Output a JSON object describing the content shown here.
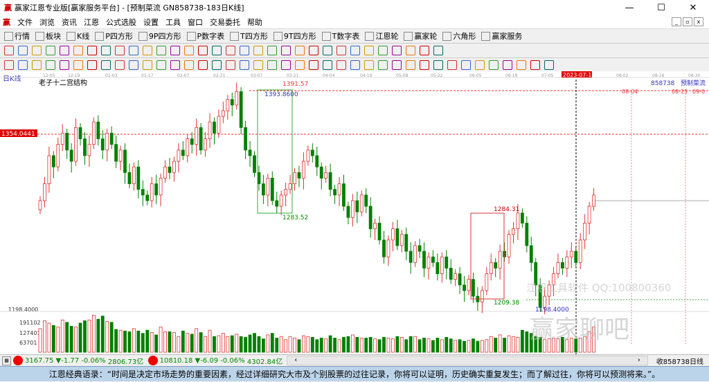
{
  "window": {
    "title": "赢家江恩专业版[赢家服务平台] - [预制菜流  GN858738-183日K线]",
    "logo": "赢",
    "controls": [
      "—",
      "☐",
      "✕"
    ]
  },
  "menu": [
    "文件",
    "浏览",
    "资讯",
    "江恩",
    "公式选股",
    "设置",
    "工具",
    "窗口",
    "交易委托",
    "帮助"
  ],
  "toolbar1": [
    "行情",
    "板块",
    "K线",
    "P四方形",
    "9P四方形",
    "P数字表",
    "T四方形",
    "9T四方形",
    "T数字表",
    "江恩轮",
    "赢家轮",
    "六角形",
    "赢家服务"
  ],
  "toolbar1_icons": [
    "grid-icon",
    "blocks-icon",
    "kline-icon",
    "ps-icon",
    "p9-icon",
    "pn-icon",
    "ts-icon",
    "t9-icon",
    "tn-icon",
    "wheel-icon",
    "winner-wheel-icon",
    "hexagon-icon",
    "dollar-icon"
  ],
  "chart": {
    "period_label": "日K线",
    "indicator_label": "老子十二宫结构",
    "symbol": "858738",
    "name": "预制菜流",
    "price_tag": "1354.0441",
    "low_axis": "1198.4000",
    "date_ticks": [
      "12-05",
      "12-19",
      "01-03",
      "01-17",
      "02-07",
      "02-21",
      "03-07",
      "03-21",
      "04-04",
      "04-19",
      "05-08",
      "05-22",
      "06-05",
      "06-19",
      "07-05",
      "2023-07-14",
      "08-02",
      "08-16",
      "08-30"
    ],
    "future_labels": [
      "08-04",
      "08-25",
      "09-0"
    ],
    "annotations": {
      "high": "1391.57",
      "box_high": "1393.8600",
      "box_low": "1283.52",
      "box2_high": "1284.31",
      "box2_low": "1209.38",
      "low": "1198.4000"
    },
    "volume_ticks": [
      "191102",
      "127401",
      "63701"
    ],
    "colors": {
      "up": "#e03030",
      "down": "#008000",
      "axis_highlight": "#e00000",
      "label_blue": "#3030c0"
    },
    "closes": [
      1295,
      1310,
      1335,
      1325,
      1345,
      1355,
      1340,
      1330,
      1360,
      1350,
      1335,
      1345,
      1365,
      1350,
      1340,
      1355,
      1345,
      1330,
      1340,
      1320,
      1310,
      1325,
      1305,
      1300,
      1295,
      1310,
      1300,
      1315,
      1325,
      1320,
      1330,
      1340,
      1335,
      1350,
      1345,
      1360,
      1340,
      1350,
      1365,
      1355,
      1370,
      1375,
      1385,
      1380,
      1392,
      1360,
      1340,
      1335,
      1320,
      1310,
      1300,
      1315,
      1295,
      1290,
      1300,
      1305,
      1310,
      1320,
      1315,
      1330,
      1340,
      1335,
      1325,
      1315,
      1320,
      1305,
      1300,
      1310,
      1290,
      1280,
      1295,
      1285,
      1300,
      1290,
      1270,
      1275,
      1260,
      1245,
      1260,
      1270,
      1255,
      1265,
      1250,
      1240,
      1255,
      1250,
      1235,
      1245,
      1240,
      1230,
      1245,
      1235,
      1225,
      1230,
      1220,
      1215,
      1225,
      1210,
      1205,
      1215,
      1230,
      1240,
      1235,
      1250,
      1245,
      1265,
      1270,
      1284,
      1275,
      1255,
      1240,
      1220,
      1200,
      1210,
      1220,
      1230,
      1240,
      1235,
      1245,
      1250,
      1240,
      1260,
      1275,
      1290,
      1300
    ],
    "volumes": [
      150000,
      200000,
      185000,
      170000,
      160000,
      205000,
      190000,
      165000,
      160000,
      185000,
      200000,
      205000,
      235000,
      210000,
      230000,
      195000,
      190000,
      145000,
      140000,
      135000,
      130000,
      150000,
      135000,
      120000,
      140000,
      125000,
      110000,
      160000,
      130000,
      130000,
      125000,
      100000,
      135000,
      120000,
      115000,
      150000,
      125000,
      100000,
      140000,
      100000,
      105000,
      120000,
      100000,
      105000,
      115000,
      100000,
      95000,
      110000,
      120000,
      100000,
      85000,
      110000,
      120000,
      90000,
      100000,
      80000,
      100000,
      90000,
      80000,
      105000,
      100000,
      95000,
      80000,
      90000,
      85000,
      105000,
      90000,
      80000,
      95000,
      100000,
      110000,
      95000,
      90000,
      90000,
      95000,
      85000,
      80000,
      95000,
      90000,
      85000,
      100000,
      95000,
      80000,
      100000,
      100000,
      80000,
      90000,
      85000,
      75000,
      90000,
      80000,
      95000,
      85000,
      75000,
      80000,
      70000,
      75000,
      85000,
      70000,
      75000,
      80000,
      100000,
      90000,
      110000,
      90000,
      105000,
      100000,
      95000,
      140000,
      130000,
      120000,
      100000,
      95000,
      80000,
      85000,
      90000,
      85000,
      95000,
      80000,
      90000,
      85000,
      90000,
      100000,
      130000,
      160000
    ]
  },
  "status": {
    "sh_index": "3167.75",
    "sh_change": "▼-1.77",
    "sh_pct": "-0.06%",
    "sh_amount": "2806.73亿",
    "sz_index": "10810.18",
    "sz_change": "▼-6.09",
    "sz_pct": "-0.06%",
    "sz_amount": "4302.84亿",
    "right": "收858738日线"
  },
  "quote": "江恩经典语录：“时间是决定市场走势的重要因素，经过详细研究大市及个别股票的过往记录，你将可以证明，历史确实重复发生；而了解过往，你将可以预测将来。”。",
  "watermark": "赢家聊吧"
}
